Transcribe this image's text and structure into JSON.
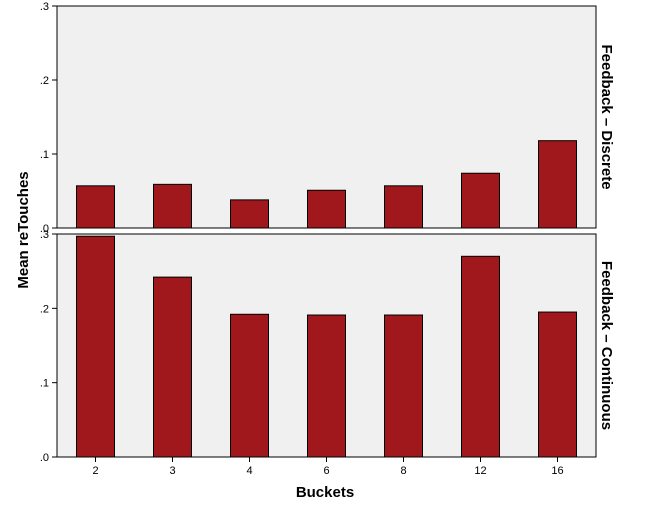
{
  "chart_data": {
    "type": "bar",
    "xlabel": "Buckets",
    "ylabel": "Mean reTouches",
    "categories": [
      "2",
      "3",
      "4",
      "6",
      "8",
      "12",
      "16"
    ],
    "ylim": [
      0,
      0.3
    ],
    "yticks": [
      ".0",
      ".1",
      ".2",
      ".3"
    ],
    "grid": false,
    "bar_color": "#a0171c",
    "panel_background": "#f0f0f0",
    "panels": [
      {
        "label": "Feedback – Discrete",
        "values": [
          0.057,
          0.059,
          0.038,
          0.051,
          0.057,
          0.074,
          0.118
        ]
      },
      {
        "label": "Feedback – Continuous",
        "values": [
          0.297,
          0.242,
          0.192,
          0.191,
          0.191,
          0.27,
          0.195
        ]
      }
    ]
  }
}
